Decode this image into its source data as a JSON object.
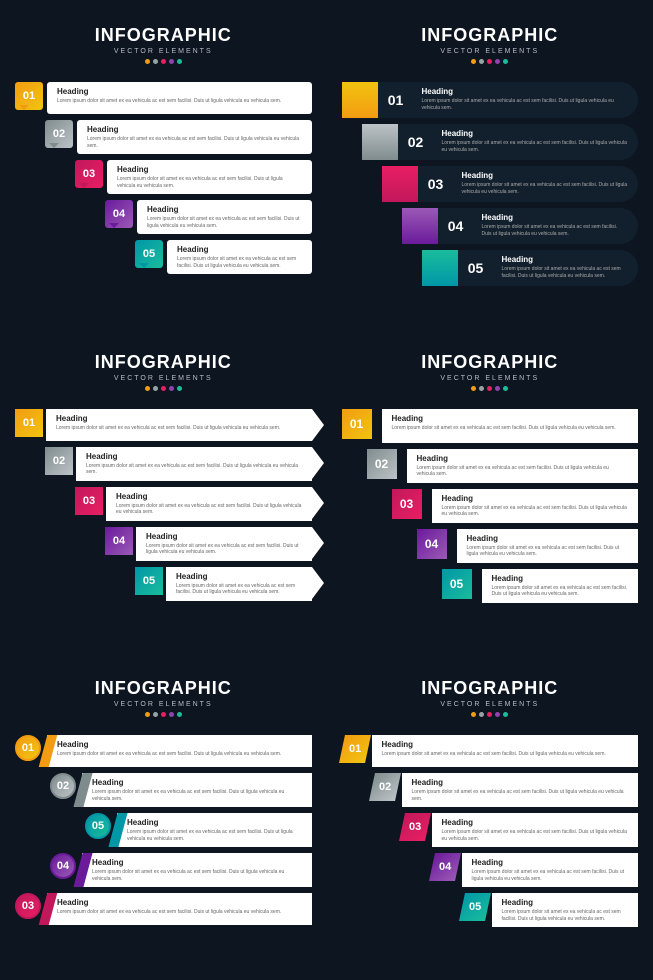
{
  "title": "INFOGRAPHIC",
  "subtitle": "VECTOR ELEMENTS",
  "dot_colors": [
    "#f39c12",
    "#95a5a6",
    "#e91e63",
    "#8e44ad",
    "#1abc9c"
  ],
  "heading": "Heading",
  "body": "Lorem ipsum dolor sit amet ex ea vehicula ac est sem facilisi. Duis ut ligula vehicula eu vehicula sem.",
  "steps": [
    {
      "num": "01",
      "c1": "#f39c12",
      "c2": "#f1c40f"
    },
    {
      "num": "02",
      "c1": "#7f8c8d",
      "c2": "#bdc3c7"
    },
    {
      "num": "03",
      "c1": "#c2185b",
      "c2": "#e91e63"
    },
    {
      "num": "04",
      "c1": "#6a1b9a",
      "c2": "#9b59b6"
    },
    {
      "num": "05",
      "c1": "#0097a7",
      "c2": "#1abc9c"
    }
  ],
  "background_color": "#0d1520",
  "card_bg": "#ffffff",
  "dark_card_bg": "#12202d",
  "text_dark": "#222222",
  "text_muted": "#666666"
}
